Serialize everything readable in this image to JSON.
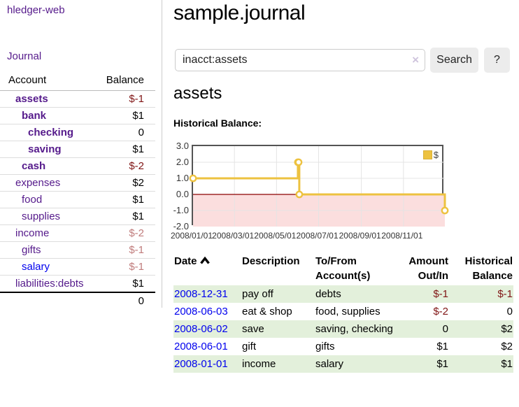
{
  "app": {
    "title": "hledger-web"
  },
  "sidebar": {
    "nav_journal": "Journal",
    "accounts_table": {
      "account_header": "Account",
      "balance_header": "Balance",
      "rows": [
        {
          "account": "assets",
          "indent": 0,
          "bold": true,
          "balance": "$-1",
          "balance_tone": "neg-strong",
          "link_tone": "visited"
        },
        {
          "account": "bank",
          "indent": 1,
          "bold": true,
          "balance": "$1",
          "balance_tone": "pos",
          "link_tone": "visited"
        },
        {
          "account": "checking",
          "indent": 2,
          "bold": true,
          "balance": "0",
          "balance_tone": "pos",
          "link_tone": "visited"
        },
        {
          "account": "saving",
          "indent": 2,
          "bold": true,
          "balance": "$1",
          "balance_tone": "pos",
          "link_tone": "visited"
        },
        {
          "account": "cash",
          "indent": 1,
          "bold": true,
          "balance": "$-2",
          "balance_tone": "neg-strong",
          "link_tone": "visited"
        },
        {
          "account": "expenses",
          "indent": 0,
          "bold": false,
          "balance": "$2",
          "balance_tone": "pos",
          "link_tone": "visited"
        },
        {
          "account": "food",
          "indent": 1,
          "bold": false,
          "balance": "$1",
          "balance_tone": "pos",
          "link_tone": "visited"
        },
        {
          "account": "supplies",
          "indent": 1,
          "bold": false,
          "balance": "$1",
          "balance_tone": "pos",
          "link_tone": "visited"
        },
        {
          "account": "income",
          "indent": 0,
          "bold": false,
          "balance": "$-2",
          "balance_tone": "neg-soft",
          "link_tone": "visited"
        },
        {
          "account": "gifts",
          "indent": 1,
          "bold": false,
          "balance": "$-1",
          "balance_tone": "neg-soft",
          "link_tone": "visited"
        },
        {
          "account": "salary",
          "indent": 1,
          "bold": false,
          "balance": "$-1",
          "balance_tone": "neg-soft",
          "link_tone": "unvisited"
        },
        {
          "account": "liabilities:debts",
          "indent": 0,
          "bold": false,
          "balance": "$1",
          "balance_tone": "pos",
          "link_tone": "visited"
        }
      ],
      "total": "0"
    }
  },
  "header": {
    "title": "sample.journal"
  },
  "search": {
    "value": "inacct:assets",
    "clear_icon": "×",
    "button_label": "Search",
    "help_label": "?"
  },
  "account_page": {
    "heading": "assets",
    "chart_label": "Historical Balance:"
  },
  "chart_data": {
    "type": "line",
    "step": true,
    "title": "Historical Balance",
    "series": [
      {
        "name": "$",
        "color": "#edc240",
        "points": [
          [
            "2008-01-01",
            1
          ],
          [
            "2008-06-01",
            2
          ],
          [
            "2008-06-02",
            2
          ],
          [
            "2008-06-03",
            0
          ],
          [
            "2008-12-31",
            -1
          ]
        ]
      }
    ],
    "x_start": "2008-01-01",
    "x_range_days": 365,
    "x_ticks": [
      {
        "label": "2008/01/01",
        "day": 0
      },
      {
        "label": "2008/03/01",
        "day": 60
      },
      {
        "label": "2008/05/01",
        "day": 121
      },
      {
        "label": "2008/07/01",
        "day": 182
      },
      {
        "label": "2008/09/01",
        "day": 244
      },
      {
        "label": "2008/11/01",
        "day": 305
      }
    ],
    "y_ticks": [
      3.0,
      2.0,
      1.0,
      0.0,
      -1.0,
      -2.0
    ],
    "ylim": [
      -2,
      3
    ],
    "grid": true,
    "legend": {
      "label": "$",
      "position": "top-right"
    },
    "negative_region": true
  },
  "register_table": {
    "headers": {
      "date": "Date",
      "description": "Description",
      "accounts_line1": "To/From",
      "accounts_line2": "Account(s)",
      "amount_line1": "Amount",
      "amount_line2": "Out/In",
      "balance_line1": "Historical",
      "balance_line2": "Balance"
    },
    "rows": [
      {
        "date": "2008-12-31",
        "description": "pay off",
        "accounts": "debts",
        "amount": "$-1",
        "amount_tone": "neg",
        "balance": "$-1",
        "balance_tone": "neg"
      },
      {
        "date": "2008-06-03",
        "description": "eat & shop",
        "accounts": "food, supplies",
        "amount": "$-2",
        "amount_tone": "neg",
        "balance": "0",
        "balance_tone": "pos"
      },
      {
        "date": "2008-06-02",
        "description": "save",
        "accounts": "saving, checking",
        "amount": "0",
        "amount_tone": "pos",
        "balance": "$2",
        "balance_tone": "pos"
      },
      {
        "date": "2008-06-01",
        "description": "gift",
        "accounts": "gifts",
        "amount": "$1",
        "amount_tone": "pos",
        "balance": "$2",
        "balance_tone": "pos"
      },
      {
        "date": "2008-01-01",
        "description": "income",
        "accounts": "salary",
        "amount": "$1",
        "amount_tone": "pos",
        "balance": "$1",
        "balance_tone": "pos"
      }
    ]
  },
  "colors": {
    "link_purple": "#551a8b",
    "link_blue": "#0000ee",
    "negative_strong": "#801515",
    "negative_soft": "#c07c7c",
    "row_stripe_green": "#e3f0db",
    "series_gold": "#edc240",
    "negative_region_pink": "#fbdede",
    "zero_line_red": "#8b0000"
  }
}
